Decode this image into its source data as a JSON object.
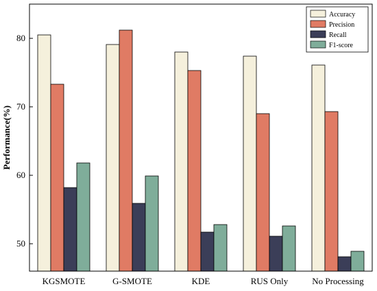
{
  "chart_data": {
    "type": "bar",
    "title": "",
    "xlabel": "",
    "ylabel": "Performance(%)",
    "ylim": [
      46,
      85
    ],
    "yticks": [
      50,
      60,
      70,
      80
    ],
    "grid": false,
    "legend_position": "top-right",
    "categories": [
      "KGSMOTE",
      "G-SMOTE",
      "KDE",
      "RUS Only",
      "No Processing"
    ],
    "series": [
      {
        "name": "Accuracy",
        "color": "#f5f0dc",
        "values": [
          80.5,
          79.1,
          78.0,
          77.4,
          76.1
        ]
      },
      {
        "name": "Precision",
        "color": "#e07b64",
        "values": [
          73.3,
          81.2,
          75.3,
          69.0,
          69.3
        ]
      },
      {
        "name": "Recall",
        "color": "#3b3e58",
        "values": [
          58.2,
          55.9,
          51.7,
          51.1,
          48.1
        ]
      },
      {
        "name": "F1-score",
        "color": "#7fad9a",
        "values": [
          61.8,
          59.9,
          52.8,
          52.6,
          48.9
        ]
      }
    ]
  }
}
